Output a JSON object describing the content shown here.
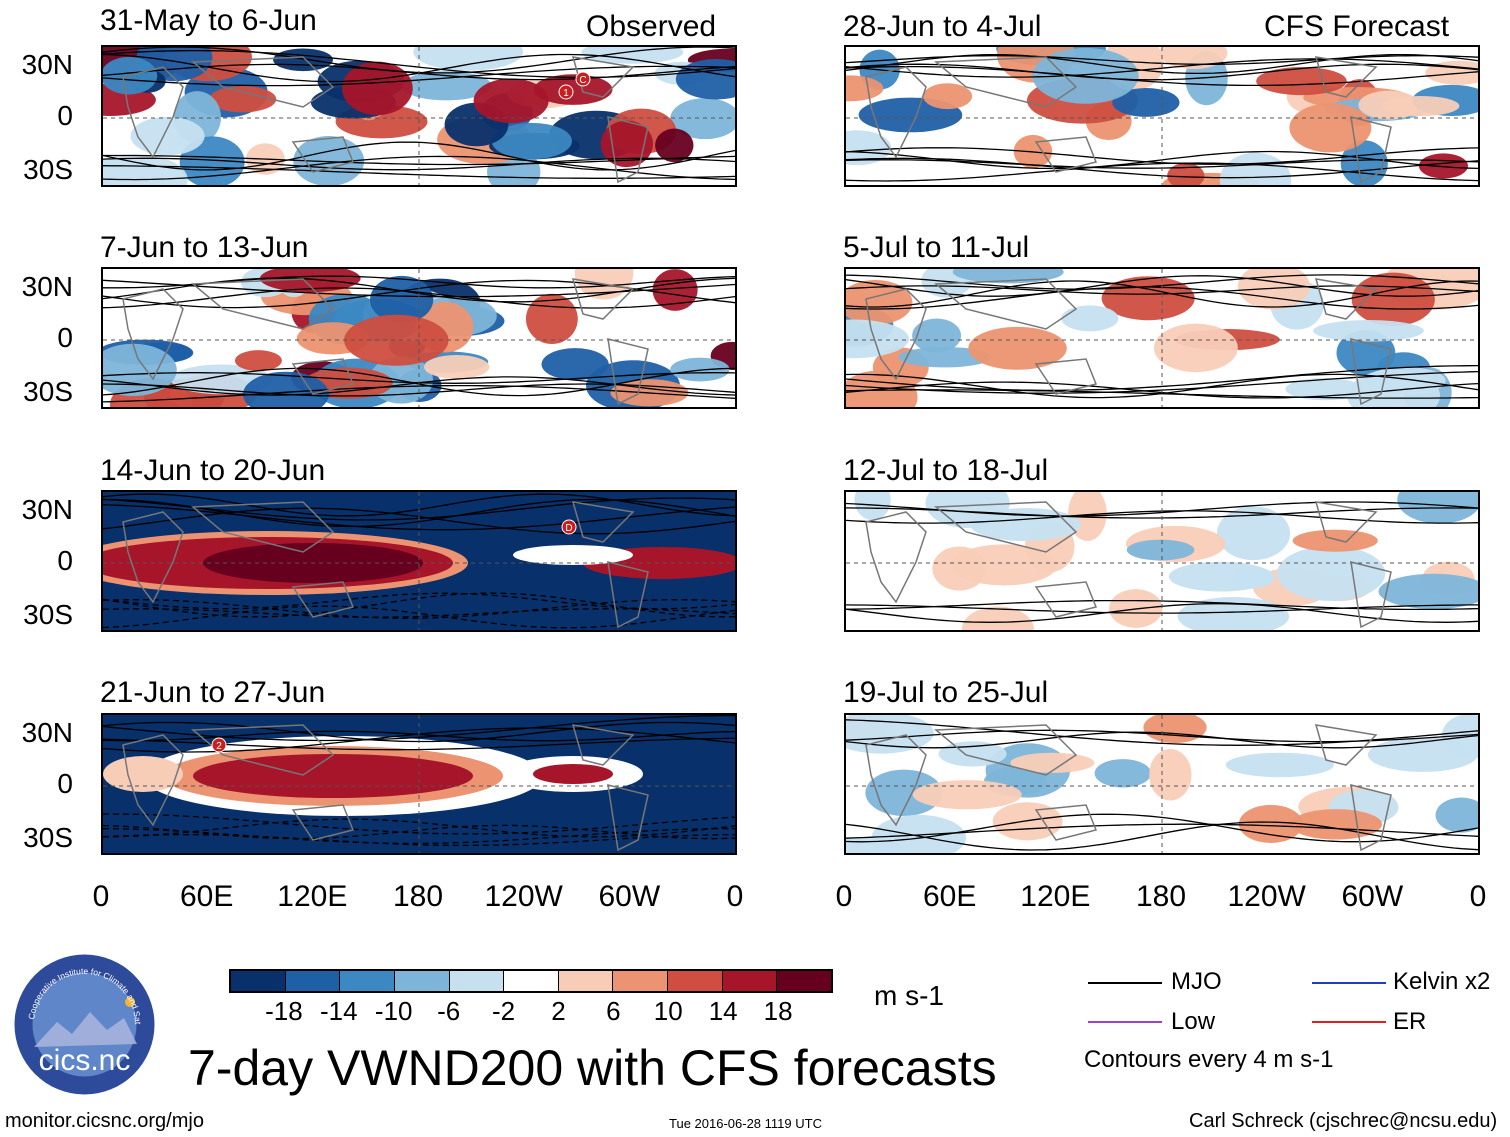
{
  "chart_data": {
    "type": "heatmap",
    "variable": "VWND200",
    "title": "7-day VWND200 with CFS forecasts",
    "units": "m s-1",
    "contour_note": "Contours every 4 m s-1",
    "column_headers": {
      "observed": "Observed",
      "forecast": "CFS Forecast"
    },
    "x_ticks": [
      "0",
      "60E",
      "120E",
      "180",
      "120W",
      "60W",
      "0"
    ],
    "y_ticks": [
      "30N",
      "0",
      "30S"
    ],
    "colorbar_levels": [
      "-18",
      "-14",
      "-10",
      "-6",
      "-2",
      "2",
      "6",
      "10",
      "14",
      "18"
    ],
    "colorbar_colors": [
      "#08306b",
      "#1f5fa6",
      "#3c88c2",
      "#7db5d9",
      "#c6e0f0",
      "#ffffff",
      "#f8cdb8",
      "#ec9471",
      "#cf4e40",
      "#a6152a",
      "#67001f"
    ],
    "legend": [
      {
        "name": "MJO",
        "color": "#000000"
      },
      {
        "name": "Kelvin x2",
        "color": "#1f3fbf"
      },
      {
        "name": "Low",
        "color": "#a040d0"
      },
      {
        "name": "ER",
        "color": "#e02020"
      }
    ],
    "panels_observed": [
      {
        "period": "31-May to 6-Jun"
      },
      {
        "period": "7-Jun to 13-Jun"
      },
      {
        "period": "14-Jun to 20-Jun"
      },
      {
        "period": "21-Jun to 27-Jun"
      }
    ],
    "panels_forecast": [
      {
        "period": "28-Jun to 4-Jul"
      },
      {
        "period": "5-Jul to 11-Jul"
      },
      {
        "period": "12-Jul to 18-Jul"
      },
      {
        "period": "19-Jul to 25-Jul"
      }
    ],
    "storm_markers": [
      "1",
      "C",
      "D",
      "2"
    ]
  },
  "footer": {
    "website": "monitor.cicsnc.org/mjo",
    "timestamp": "Tue 2016-06-28 1119 UTC",
    "author": "Carl Schreck (cjschrec@ncsu.edu)",
    "logo_text": "cics.nc",
    "logo_ring": "Cooperative Institute for Climate and Satellites"
  }
}
